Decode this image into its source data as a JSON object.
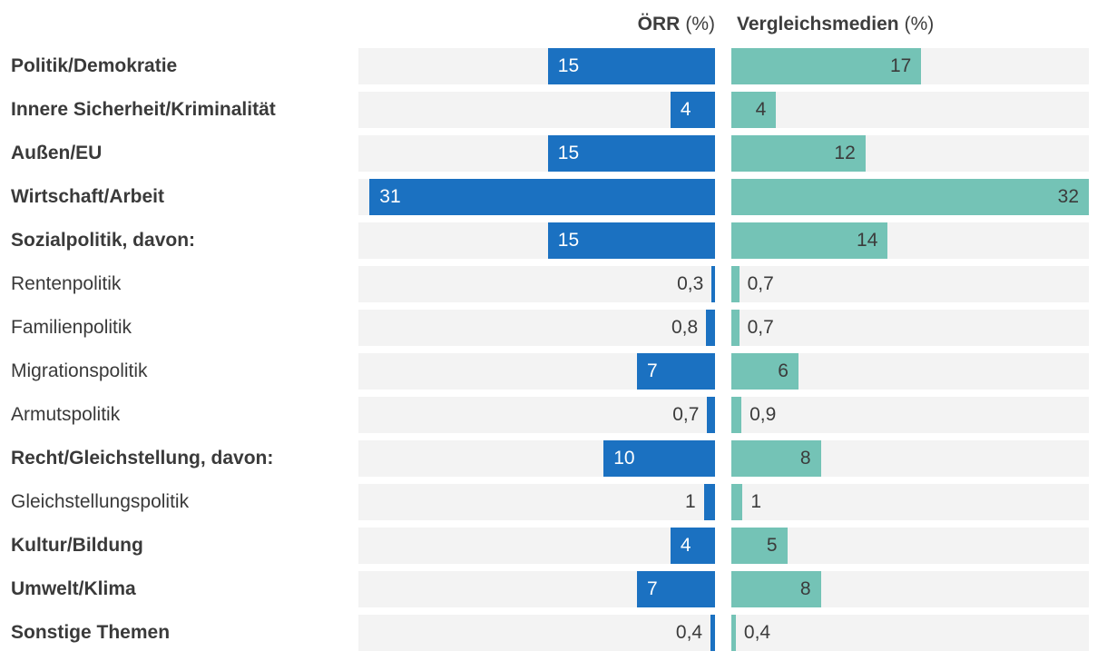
{
  "header": {
    "oerr_label": "ÖRR",
    "vergleich_label": "Vergleichsmedien",
    "unit": "(%)"
  },
  "colors": {
    "oerr_bar": "#1b71c1",
    "vergleich_bar": "#74c3b6",
    "track": "#f3f3f3",
    "value_text_dark": "#3b3b3b",
    "value_text_light": "#ffffff",
    "label_text": "#3a3a3a"
  },
  "chart_data": {
    "type": "bar",
    "orientation": "horizontal",
    "value_axis_max": 32,
    "title": "",
    "xlabel": "",
    "ylabel": "",
    "grid": false,
    "legend_position": "column-headers",
    "columns": [
      "ÖRR (%)",
      "Vergleichsmedien (%)"
    ],
    "categories": [
      "Politik/Demokratie",
      "Innere Sicherheit/Kriminalität",
      "Außen/EU",
      "Wirtschaft/Arbeit",
      "Sozialpolitik, davon:",
      "Rentenpolitik",
      "Familienpolitik",
      "Migrationspolitik",
      "Armutspolitik",
      "Recht/Gleichstellung, davon:",
      "Gleichstellungspolitik",
      "Kultur/Bildung",
      "Umwelt/Klima",
      "Sonstige Themen"
    ],
    "categories_bold": [
      true,
      true,
      true,
      true,
      true,
      false,
      false,
      false,
      false,
      true,
      false,
      true,
      true,
      true
    ],
    "series": [
      {
        "name": "ÖRR (%)",
        "color": "#1b71c1",
        "values": [
          15,
          4,
          15,
          31,
          15,
          0.3,
          0.8,
          7,
          0.7,
          10,
          1,
          4,
          7,
          0.4
        ],
        "labels": [
          "15",
          "4",
          "15",
          "31",
          "15",
          "0,3",
          "0,8",
          "7",
          "0,7",
          "10",
          "1",
          "4",
          "7",
          "0,4"
        ]
      },
      {
        "name": "Vergleichsmedien (%)",
        "color": "#74c3b6",
        "values": [
          17,
          4,
          12,
          32,
          14,
          0.7,
          0.7,
          6,
          0.9,
          8,
          1,
          5,
          8,
          0.4
        ],
        "labels": [
          "17",
          "4",
          "12",
          "32",
          "14",
          "0,7",
          "0,7",
          "6",
          "0,9",
          "8",
          "1",
          "5",
          "8",
          "0,4"
        ]
      }
    ]
  }
}
